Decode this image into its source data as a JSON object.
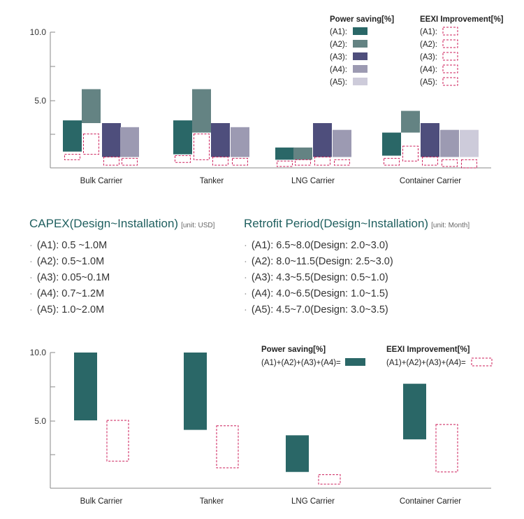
{
  "colors": {
    "A1": "#2a6767",
    "A2": "#648383",
    "A3": "#4e4e7c",
    "A4": "#9c9ab2",
    "A5": "#cdcbda",
    "eexi": "#cc1e5a",
    "axis": "#888888"
  },
  "chart_data": [
    {
      "type": "bar",
      "title": "",
      "ylim": [
        0,
        10
      ],
      "yticks": [
        "10.0",
        "5.0"
      ],
      "categories": [
        "Bulk Carrier",
        "Tanker",
        "LNG Carrier",
        "Container Carrier"
      ],
      "legend_power_title": "Power saving[%]",
      "legend_eexi_title": "EEXI Improvement[%]",
      "series": [
        {
          "name": "(A1):",
          "power": [
            [
              1.2,
              3.5
            ],
            [
              1.0,
              3.5
            ],
            [
              0.6,
              1.5
            ],
            [
              0.9,
              2.6
            ]
          ],
          "eexi": [
            [
              0.6,
              1.0
            ],
            [
              0.4,
              0.9
            ],
            [
              0.1,
              0.5
            ],
            [
              0.2,
              0.7
            ]
          ]
        },
        {
          "name": "(A2):",
          "power": [
            [
              3.3,
              5.8
            ],
            [
              2.6,
              5.8
            ],
            [
              0.6,
              1.5
            ],
            [
              2.6,
              4.2
            ]
          ],
          "eexi": [
            [
              1.0,
              2.5
            ],
            [
              0.6,
              2.5
            ],
            [
              0.2,
              0.6
            ],
            [
              0.5,
              1.6
            ]
          ]
        },
        {
          "name": "(A3):",
          "power": [
            [
              0.8,
              3.3
            ],
            [
              0.8,
              3.3
            ],
            [
              0.8,
              3.3
            ],
            [
              0.8,
              3.3
            ]
          ],
          "eexi": [
            [
              0.2,
              0.8
            ],
            [
              0.2,
              0.8
            ],
            [
              0.2,
              0.8
            ],
            [
              0.2,
              0.8
            ]
          ]
        },
        {
          "name": "(A4):",
          "power": [
            [
              0.8,
              3.0
            ],
            [
              0.8,
              3.0
            ],
            [
              0.8,
              2.8
            ],
            [
              0.8,
              2.8
            ]
          ],
          "eexi": [
            [
              0.2,
              0.7
            ],
            [
              0.2,
              0.7
            ],
            [
              0.2,
              0.6
            ],
            [
              0.1,
              0.6
            ]
          ]
        },
        {
          "name": "(A5):",
          "power": [
            null,
            null,
            null,
            [
              0.8,
              2.8
            ]
          ],
          "eexi": [
            null,
            null,
            null,
            [
              0.0,
              0.6
            ]
          ]
        }
      ]
    },
    {
      "type": "bar",
      "title": "",
      "ylim": [
        0,
        10
      ],
      "yticks": [
        "10.0",
        "5.0"
      ],
      "categories": [
        "Bulk Carrier",
        "Tanker",
        "LNG Carrier",
        "Container Carrier"
      ],
      "legend_power_title": "Power saving[%]",
      "legend_eexi_title": "EEXI Improvement[%]",
      "legend_power_label": "(A1)+(A2)+(A3)+(A4)=",
      "legend_eexi_label": "(A1)+(A2)+(A3)+(A4)=",
      "power": [
        [
          5.0,
          10.0
        ],
        [
          4.3,
          10.0
        ],
        [
          1.2,
          3.9
        ],
        [
          3.6,
          7.7
        ]
      ],
      "eexi": [
        [
          2.0,
          5.0
        ],
        [
          1.5,
          4.6
        ],
        [
          0.3,
          1.0
        ],
        [
          1.2,
          4.7
        ]
      ]
    }
  ],
  "capex": {
    "title": "CAPEX(Design~Installation)",
    "unit": "[unit: USD]",
    "items": [
      "(A1): 0.5 ~1.0M",
      "(A2): 0.5~1.0M",
      "(A3): 0.05~0.1M",
      "(A4): 0.7~1.2M",
      "(A5): 1.0~2.0M"
    ]
  },
  "retrofit": {
    "title": "Retrofit Period(Design~Installation)",
    "unit": "[unit: Month]",
    "items": [
      "(A1): 6.5~8.0(Design: 2.0~3.0)",
      "(A2): 8.0~11.5(Design: 2.5~3.0)",
      "(A3): 4.3~5.5(Design: 0.5~1.0)",
      "(A4): 4.0~6.5(Design: 1.0~1.5)",
      "(A5): 4.5~7.0(Design: 3.0~3.5)"
    ]
  }
}
